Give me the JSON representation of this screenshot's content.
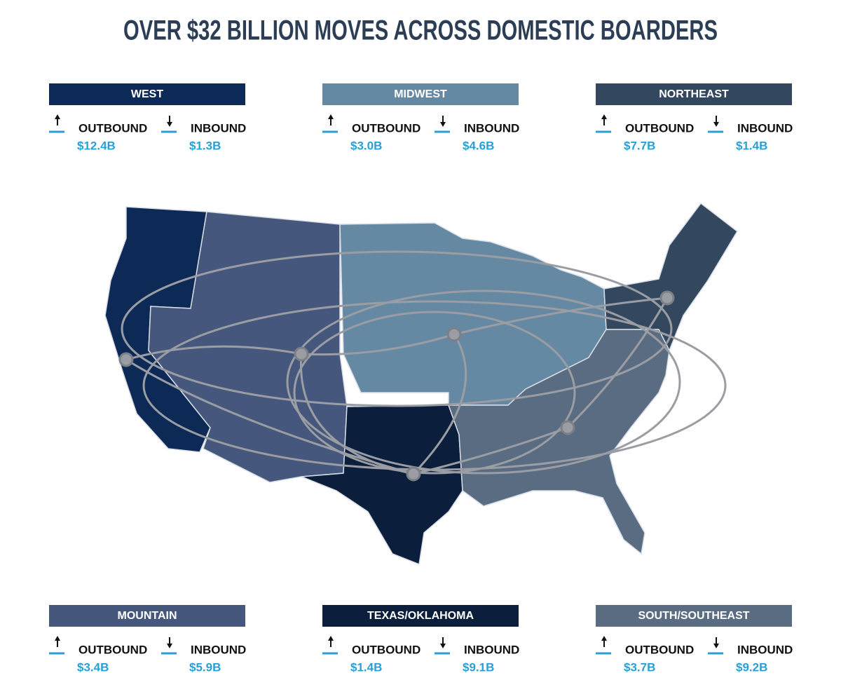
{
  "title": "OVER $32 BILLION MOVES ACROSS DOMESTIC BOARDERS",
  "regions": [
    {
      "name": "WEST",
      "color": "#0d2a57",
      "outbound": {
        "label": "OUTBOUND",
        "value": "$12.4B"
      },
      "inbound": {
        "label": "INBOUND",
        "value": "$1.3B"
      }
    },
    {
      "name": "MIDWEST",
      "color": "#6589a3",
      "outbound": {
        "label": "OUTBOUND",
        "value": "$3.0B"
      },
      "inbound": {
        "label": "INBOUND",
        "value": "$4.6B"
      }
    },
    {
      "name": "NORTHEAST",
      "color": "#33475e",
      "outbound": {
        "label": "OUTBOUND",
        "value": "$7.7B"
      },
      "inbound": {
        "label": "INBOUND",
        "value": "$1.4B"
      }
    },
    {
      "name": "MOUNTAIN",
      "color": "#45577c",
      "outbound": {
        "label": "OUTBOUND",
        "value": "$3.4B"
      },
      "inbound": {
        "label": "INBOUND",
        "value": "$5.9B"
      }
    },
    {
      "name": "TEXAS/OKLAHOMA",
      "color": "#0b1f3c",
      "outbound": {
        "label": "OUTBOUND",
        "value": "$1.4B"
      },
      "inbound": {
        "label": "INBOUND",
        "value": "$9.1B"
      }
    },
    {
      "name": "SOUTH/SOUTHEAST",
      "color": "#5a6c82",
      "outbound": {
        "label": "OUTBOUND",
        "value": "$3.7B"
      },
      "inbound": {
        "label": "INBOUND",
        "value": "$9.2B"
      }
    }
  ]
}
